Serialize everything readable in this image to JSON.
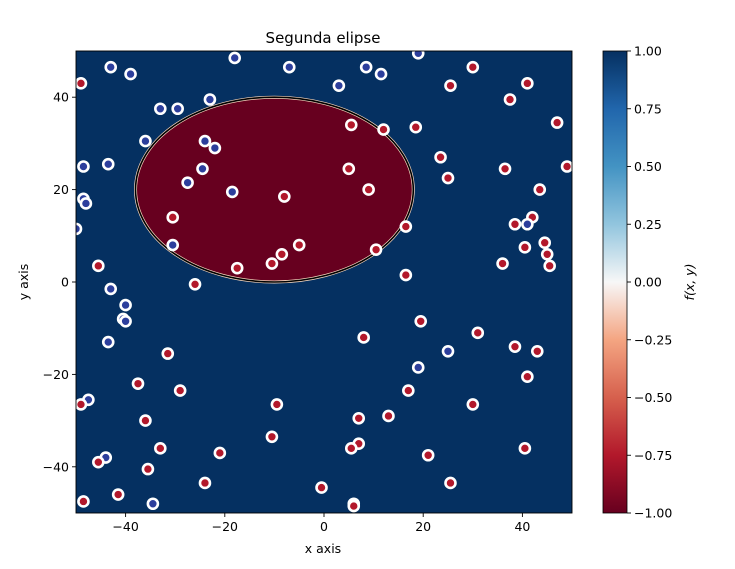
{
  "chart_data": {
    "type": "scatter",
    "title": "Segunda elipse",
    "xlabel": "x axis",
    "ylabel": "y axis",
    "xlim": [
      -50,
      50
    ],
    "ylim": [
      -50,
      50
    ],
    "xticks": [
      -40,
      -20,
      0,
      20,
      40
    ],
    "yticks": [
      -40,
      -20,
      0,
      20,
      40
    ],
    "ellipse": {
      "cx": -10,
      "cy": 20,
      "rx": 28,
      "ry": 20
    },
    "background": {
      "inside_value": -1,
      "outside_value": 1
    },
    "colorbar": {
      "label": "f(x, y)",
      "range": [
        -1,
        1
      ],
      "ticks": [
        "1.00",
        "0.75",
        "0.50",
        "0.25",
        "0.00",
        "-0.25",
        "-0.50",
        "-0.75",
        "-1.00"
      ],
      "colormap": "RdBu",
      "colors": {
        "neg": "#67001f",
        "mid": "#f7f7f7",
        "pos": "#053061"
      }
    },
    "marker_colors": {
      "red": "#b2182b",
      "blue": "#2c3e9c"
    },
    "points": [
      {
        "x": -49,
        "y": 43,
        "c": "red"
      },
      {
        "x": -43,
        "y": 46.5,
        "c": "blue"
      },
      {
        "x": -39,
        "y": 45,
        "c": "blue"
      },
      {
        "x": -18,
        "y": 48.5,
        "c": "blue"
      },
      {
        "x": -7,
        "y": 46.5,
        "c": "blue"
      },
      {
        "x": 8.5,
        "y": 46.5,
        "c": "blue"
      },
      {
        "x": 11.5,
        "y": 45,
        "c": "blue"
      },
      {
        "x": 19,
        "y": 49.5,
        "c": "blue"
      },
      {
        "x": 30,
        "y": 46.5,
        "c": "red"
      },
      {
        "x": 3,
        "y": 42.5,
        "c": "blue"
      },
      {
        "x": 25.5,
        "y": 42.5,
        "c": "red"
      },
      {
        "x": 41,
        "y": 43,
        "c": "red"
      },
      {
        "x": -23,
        "y": 39.5,
        "c": "blue"
      },
      {
        "x": -33,
        "y": 37.5,
        "c": "blue"
      },
      {
        "x": -29.5,
        "y": 37.5,
        "c": "blue"
      },
      {
        "x": 37.5,
        "y": 39.5,
        "c": "red"
      },
      {
        "x": 47,
        "y": 34.5,
        "c": "red"
      },
      {
        "x": 5.5,
        "y": 34,
        "c": "red"
      },
      {
        "x": 12,
        "y": 33,
        "c": "red"
      },
      {
        "x": 18.5,
        "y": 33.5,
        "c": "red"
      },
      {
        "x": -36,
        "y": 30.5,
        "c": "blue"
      },
      {
        "x": -24,
        "y": 30.5,
        "c": "blue"
      },
      {
        "x": -22,
        "y": 29,
        "c": "blue"
      },
      {
        "x": 23.5,
        "y": 27,
        "c": "red"
      },
      {
        "x": -48.5,
        "y": 25,
        "c": "blue"
      },
      {
        "x": -43.5,
        "y": 25.5,
        "c": "blue"
      },
      {
        "x": -24.5,
        "y": 24.5,
        "c": "blue"
      },
      {
        "x": 5,
        "y": 24.5,
        "c": "red"
      },
      {
        "x": 36.5,
        "y": 24.5,
        "c": "red"
      },
      {
        "x": 49,
        "y": 25,
        "c": "red"
      },
      {
        "x": 25,
        "y": 22.5,
        "c": "red"
      },
      {
        "x": -27.5,
        "y": 21.5,
        "c": "blue"
      },
      {
        "x": 9,
        "y": 20,
        "c": "red"
      },
      {
        "x": 43.5,
        "y": 20,
        "c": "red"
      },
      {
        "x": -18.5,
        "y": 19.5,
        "c": "blue"
      },
      {
        "x": -8,
        "y": 18.5,
        "c": "red"
      },
      {
        "x": -48.5,
        "y": 18,
        "c": "blue"
      },
      {
        "x": -48,
        "y": 17,
        "c": "blue"
      },
      {
        "x": -30.5,
        "y": 14,
        "c": "red"
      },
      {
        "x": 42,
        "y": 14,
        "c": "red"
      },
      {
        "x": -50,
        "y": 11.5,
        "c": "blue"
      },
      {
        "x": 16.5,
        "y": 12,
        "c": "red"
      },
      {
        "x": 38.5,
        "y": 12.5,
        "c": "red"
      },
      {
        "x": 41,
        "y": 12.5,
        "c": "blue"
      },
      {
        "x": 44.5,
        "y": 8.5,
        "c": "red"
      },
      {
        "x": -30.5,
        "y": 8,
        "c": "blue"
      },
      {
        "x": -5,
        "y": 8,
        "c": "red"
      },
      {
        "x": 10.5,
        "y": 7,
        "c": "red"
      },
      {
        "x": 40.5,
        "y": 7.5,
        "c": "red"
      },
      {
        "x": -8.5,
        "y": 6,
        "c": "red"
      },
      {
        "x": 45,
        "y": 6,
        "c": "red"
      },
      {
        "x": -10.5,
        "y": 4,
        "c": "red"
      },
      {
        "x": 36,
        "y": 4,
        "c": "red"
      },
      {
        "x": 45.5,
        "y": 3.5,
        "c": "red"
      },
      {
        "x": -45.5,
        "y": 3.5,
        "c": "red"
      },
      {
        "x": -17.5,
        "y": 3,
        "c": "red"
      },
      {
        "x": 16.5,
        "y": 1.5,
        "c": "red"
      },
      {
        "x": -26,
        "y": -0.5,
        "c": "red"
      },
      {
        "x": -43,
        "y": -1.5,
        "c": "blue"
      },
      {
        "x": -40,
        "y": -5,
        "c": "blue"
      },
      {
        "x": -40.5,
        "y": -8,
        "c": "blue"
      },
      {
        "x": -40,
        "y": -8.5,
        "c": "blue"
      },
      {
        "x": 19.5,
        "y": -8.5,
        "c": "red"
      },
      {
        "x": 31,
        "y": -11,
        "c": "red"
      },
      {
        "x": -43.5,
        "y": -13,
        "c": "blue"
      },
      {
        "x": 8,
        "y": -12,
        "c": "red"
      },
      {
        "x": 38.5,
        "y": -14,
        "c": "red"
      },
      {
        "x": 25,
        "y": -15,
        "c": "blue"
      },
      {
        "x": 43,
        "y": -15,
        "c": "red"
      },
      {
        "x": -31.5,
        "y": -15.5,
        "c": "red"
      },
      {
        "x": 19,
        "y": -18.5,
        "c": "blue"
      },
      {
        "x": 41,
        "y": -20.5,
        "c": "red"
      },
      {
        "x": -37.5,
        "y": -22,
        "c": "red"
      },
      {
        "x": -29,
        "y": -23.5,
        "c": "red"
      },
      {
        "x": 17,
        "y": -23.5,
        "c": "red"
      },
      {
        "x": -47.5,
        "y": -25.5,
        "c": "blue"
      },
      {
        "x": -49,
        "y": -26.5,
        "c": "red"
      },
      {
        "x": -9.5,
        "y": -26.5,
        "c": "red"
      },
      {
        "x": 30,
        "y": -26.5,
        "c": "red"
      },
      {
        "x": 13,
        "y": -29,
        "c": "red"
      },
      {
        "x": -36,
        "y": -30,
        "c": "red"
      },
      {
        "x": 7,
        "y": -29.5,
        "c": "red"
      },
      {
        "x": -10.5,
        "y": -33.5,
        "c": "red"
      },
      {
        "x": 7,
        "y": -35,
        "c": "red"
      },
      {
        "x": -33,
        "y": -36,
        "c": "red"
      },
      {
        "x": 5.5,
        "y": -36,
        "c": "red"
      },
      {
        "x": 40.5,
        "y": -36,
        "c": "red"
      },
      {
        "x": -21,
        "y": -37,
        "c": "red"
      },
      {
        "x": 21,
        "y": -37.5,
        "c": "red"
      },
      {
        "x": -44,
        "y": -38,
        "c": "blue"
      },
      {
        "x": -45.5,
        "y": -39,
        "c": "red"
      },
      {
        "x": -35.5,
        "y": -40.5,
        "c": "red"
      },
      {
        "x": -24,
        "y": -43.5,
        "c": "red"
      },
      {
        "x": 25.5,
        "y": -43.5,
        "c": "red"
      },
      {
        "x": -0.5,
        "y": -44.5,
        "c": "red"
      },
      {
        "x": -41.5,
        "y": -46,
        "c": "red"
      },
      {
        "x": -48.5,
        "y": -47.5,
        "c": "red"
      },
      {
        "x": -34.5,
        "y": -48,
        "c": "blue"
      },
      {
        "x": 6,
        "y": -48,
        "c": "blue"
      },
      {
        "x": 6,
        "y": -48.5,
        "c": "red"
      }
    ]
  }
}
